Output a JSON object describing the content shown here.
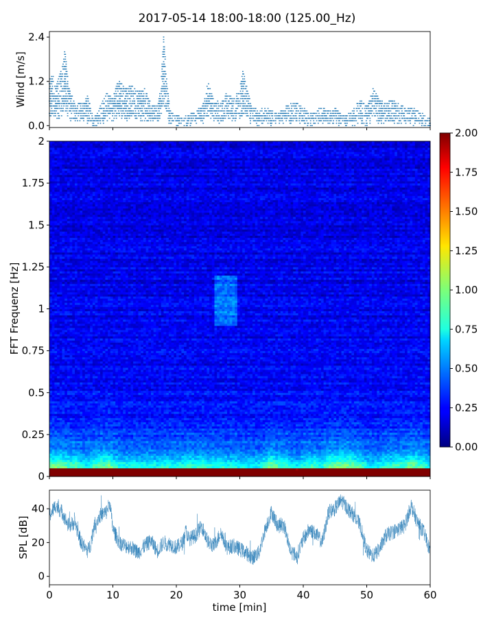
{
  "chart_data": [
    {
      "type": "scatter",
      "title": "2017-05-14 18:00-18:00 (125.00_Hz)",
      "ylabel": "Wind [m/s]",
      "xlim": [
        0,
        60
      ],
      "ylim": [
        -0.05,
        2.55
      ],
      "yticks": [
        "0.0",
        "1.2",
        "2.4"
      ],
      "marker_color": "#1f77b4",
      "envelope_points": [
        [
          0,
          1.2
        ],
        [
          0.5,
          1.4
        ],
        [
          1,
          1.0
        ],
        [
          2,
          1.6
        ],
        [
          2.5,
          2.1
        ],
        [
          3,
          1.1
        ],
        [
          4,
          0.6
        ],
        [
          5,
          0.6
        ],
        [
          6,
          0.8
        ],
        [
          7,
          0.2
        ],
        [
          8,
          0.5
        ],
        [
          9,
          0.9
        ],
        [
          10,
          0.8
        ],
        [
          11,
          1.3
        ],
        [
          12,
          1.0
        ],
        [
          13,
          1.1
        ],
        [
          14,
          0.9
        ],
        [
          15,
          1.0
        ],
        [
          16,
          0.6
        ],
        [
          17,
          0.5
        ],
        [
          17.5,
          1.0
        ],
        [
          18,
          2.45
        ],
        [
          18.5,
          1.2
        ],
        [
          19,
          0.4
        ],
        [
          20,
          0.3
        ],
        [
          21,
          0.2
        ],
        [
          22,
          0.3
        ],
        [
          23,
          0.4
        ],
        [
          24,
          0.5
        ],
        [
          25,
          1.2
        ],
        [
          26,
          0.7
        ],
        [
          27,
          0.6
        ],
        [
          28,
          0.9
        ],
        [
          29,
          0.7
        ],
        [
          30,
          1.0
        ],
        [
          30.5,
          1.5
        ],
        [
          31,
          1.1
        ],
        [
          32,
          0.5
        ],
        [
          33,
          0.4
        ],
        [
          34,
          0.5
        ],
        [
          35,
          0.4
        ],
        [
          36,
          0.3
        ],
        [
          37,
          0.5
        ],
        [
          38,
          0.6
        ],
        [
          39,
          0.6
        ],
        [
          40,
          0.5
        ],
        [
          41,
          0.3
        ],
        [
          42,
          0.4
        ],
        [
          43,
          0.5
        ],
        [
          44,
          0.4
        ],
        [
          45,
          0.5
        ],
        [
          46,
          0.3
        ],
        [
          47,
          0.3
        ],
        [
          48,
          0.5
        ],
        [
          49,
          0.7
        ],
        [
          50,
          0.5
        ],
        [
          51,
          1.0
        ],
        [
          52,
          0.7
        ],
        [
          53,
          0.6
        ],
        [
          54,
          0.7
        ],
        [
          55,
          0.6
        ],
        [
          56,
          0.5
        ],
        [
          57,
          0.5
        ],
        [
          58,
          0.4
        ],
        [
          59,
          0.3
        ],
        [
          60,
          0.2
        ]
      ]
    },
    {
      "type": "heatmap",
      "ylabel": "FFT Frequenz [Hz]",
      "xlim": [
        0,
        60
      ],
      "ylim": [
        0,
        2
      ],
      "yticks": [
        "0",
        "0.25",
        "0.5",
        "0.75",
        "1",
        "1.25",
        "1.5",
        "1.75",
        "2"
      ],
      "colormap": "jet",
      "colorbar": {
        "range": [
          0,
          2
        ],
        "ticks": [
          "0.00",
          "0.25",
          "0.50",
          "0.75",
          "1.00",
          "1.25",
          "1.50",
          "1.75",
          "2.00"
        ]
      }
    },
    {
      "type": "line",
      "ylabel": "SPL [dB]",
      "xlabel": "time [min]",
      "xlim": [
        0,
        60
      ],
      "ylim": [
        -5,
        51
      ],
      "xticks": [
        "0",
        "10",
        "20",
        "30",
        "40",
        "50",
        "60"
      ],
      "yticks": [
        "0",
        "20",
        "40"
      ],
      "line_color": "#1f77b4",
      "points": [
        [
          0,
          36
        ],
        [
          1,
          42
        ],
        [
          2,
          38
        ],
        [
          3,
          30
        ],
        [
          4,
          32
        ],
        [
          5,
          20
        ],
        [
          6,
          15
        ],
        [
          6.5,
          19
        ],
        [
          7,
          30
        ],
        [
          8,
          36
        ],
        [
          9,
          38
        ],
        [
          9.5,
          44
        ],
        [
          10,
          28
        ],
        [
          11,
          20
        ],
        [
          12,
          18
        ],
        [
          13,
          17
        ],
        [
          14,
          14
        ],
        [
          15,
          18
        ],
        [
          16,
          21
        ],
        [
          17,
          15
        ],
        [
          18,
          20
        ],
        [
          19,
          19
        ],
        [
          20,
          17
        ],
        [
          21,
          20
        ],
        [
          21.5,
          27
        ],
        [
          22,
          22
        ],
        [
          23,
          24
        ],
        [
          24,
          30
        ],
        [
          25,
          20
        ],
        [
          26,
          18
        ],
        [
          27,
          26
        ],
        [
          28,
          17
        ],
        [
          29,
          18
        ],
        [
          30,
          16
        ],
        [
          31,
          14
        ],
        [
          32,
          11
        ],
        [
          33,
          14
        ],
        [
          34,
          28
        ],
        [
          35,
          38
        ],
        [
          36,
          30
        ],
        [
          37,
          30
        ],
        [
          38,
          15
        ],
        [
          39,
          12
        ],
        [
          40,
          22
        ],
        [
          41,
          28
        ],
        [
          42,
          25
        ],
        [
          43,
          20
        ],
        [
          44,
          38
        ],
        [
          45,
          40
        ],
        [
          46,
          45
        ],
        [
          47,
          40
        ],
        [
          48,
          36
        ],
        [
          49,
          30
        ],
        [
          50,
          15
        ],
        [
          51,
          12
        ],
        [
          52,
          16
        ],
        [
          53,
          24
        ],
        [
          54,
          26
        ],
        [
          55,
          28
        ],
        [
          56,
          30
        ],
        [
          57,
          42
        ],
        [
          58,
          32
        ],
        [
          59,
          26
        ],
        [
          60,
          15
        ]
      ]
    }
  ]
}
